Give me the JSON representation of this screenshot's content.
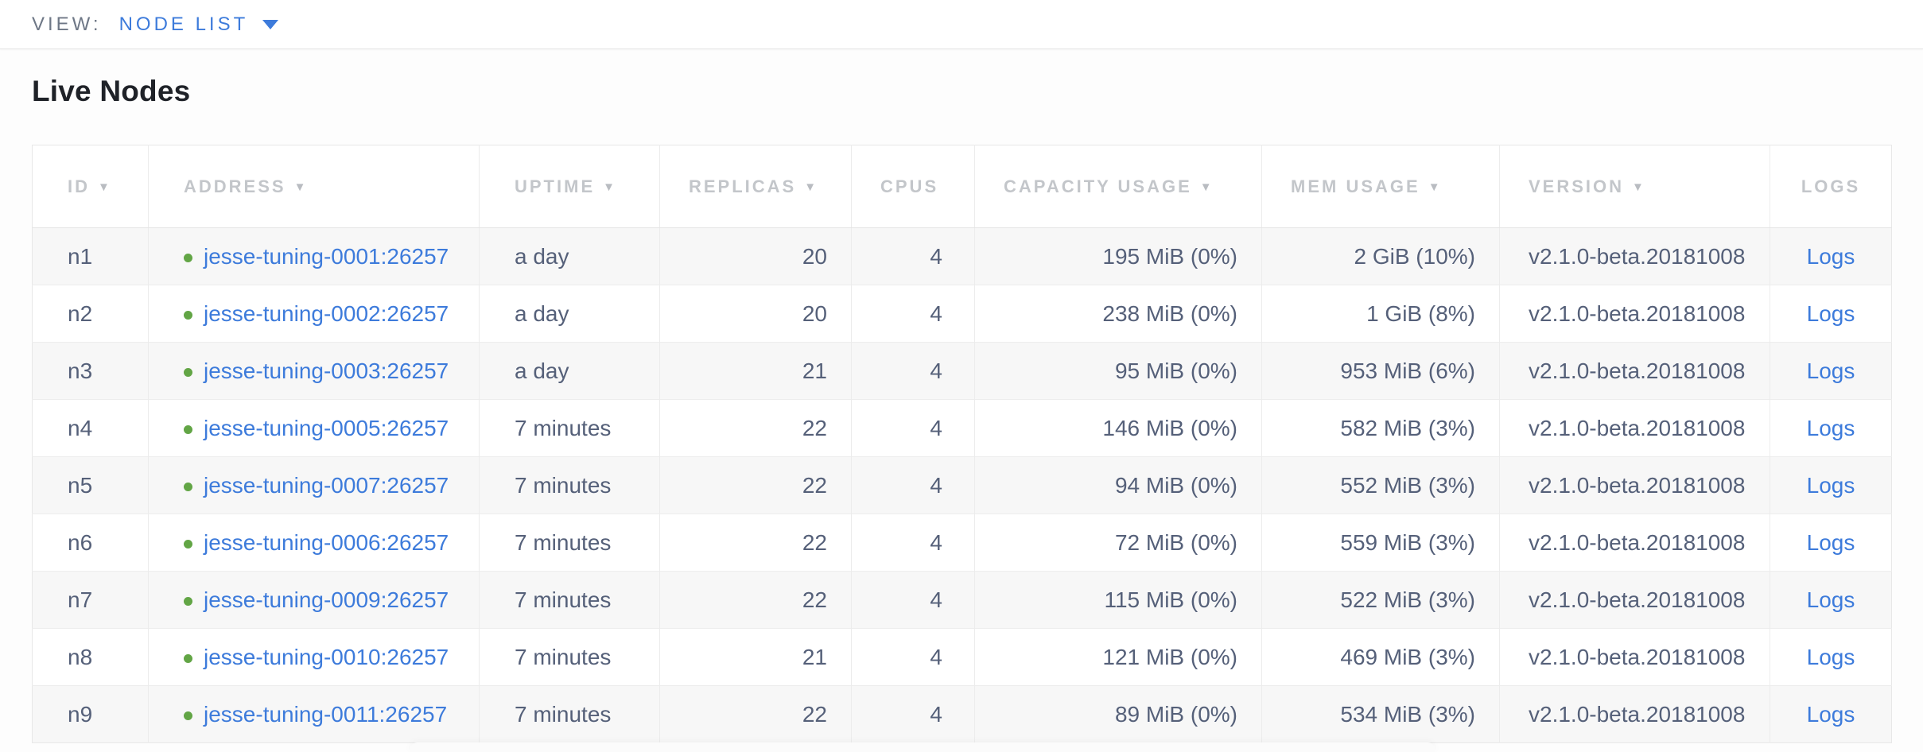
{
  "view_bar": {
    "label": "VIEW:",
    "selected": "NODE LIST"
  },
  "section": {
    "title": "Live Nodes"
  },
  "icons": {
    "sort_arrow": "▼",
    "dropdown_caret": "▼"
  },
  "colors": {
    "accent_blue": "#3d7bdb",
    "link_blue": "#3d7bdb",
    "healthy_green": "#62a545",
    "header_grey": "#c3c6ca",
    "cell_slate": "#556079",
    "row_alt_bg": "#f7f7f7"
  },
  "table": {
    "columns": [
      {
        "key": "id",
        "label": "ID",
        "sortable": true
      },
      {
        "key": "address",
        "label": "ADDRESS",
        "sortable": true
      },
      {
        "key": "uptime",
        "label": "UPTIME",
        "sortable": true
      },
      {
        "key": "replicas",
        "label": "REPLICAS",
        "sortable": true
      },
      {
        "key": "cpus",
        "label": "CPUS",
        "sortable": false
      },
      {
        "key": "capacity",
        "label": "CAPACITY USAGE",
        "sortable": true
      },
      {
        "key": "mem",
        "label": "MEM USAGE",
        "sortable": true
      },
      {
        "key": "version",
        "label": "VERSION",
        "sortable": true
      },
      {
        "key": "logs",
        "label": "LOGS",
        "sortable": false
      }
    ],
    "rows": [
      {
        "id": "n1",
        "address": "jesse-tuning-0001:26257",
        "status": "healthy",
        "uptime": "a day",
        "replicas": "20",
        "cpus": "4",
        "capacity": "195 MiB (0%)",
        "mem": "2 GiB (10%)",
        "version": "v2.1.0-beta.20181008",
        "logs": "Logs"
      },
      {
        "id": "n2",
        "address": "jesse-tuning-0002:26257",
        "status": "healthy",
        "uptime": "a day",
        "replicas": "20",
        "cpus": "4",
        "capacity": "238 MiB (0%)",
        "mem": "1 GiB (8%)",
        "version": "v2.1.0-beta.20181008",
        "logs": "Logs"
      },
      {
        "id": "n3",
        "address": "jesse-tuning-0003:26257",
        "status": "healthy",
        "uptime": "a day",
        "replicas": "21",
        "cpus": "4",
        "capacity": "95 MiB (0%)",
        "mem": "953 MiB (6%)",
        "version": "v2.1.0-beta.20181008",
        "logs": "Logs"
      },
      {
        "id": "n4",
        "address": "jesse-tuning-0005:26257",
        "status": "healthy",
        "uptime": "7 minutes",
        "replicas": "22",
        "cpus": "4",
        "capacity": "146 MiB (0%)",
        "mem": "582 MiB (3%)",
        "version": "v2.1.0-beta.20181008",
        "logs": "Logs"
      },
      {
        "id": "n5",
        "address": "jesse-tuning-0007:26257",
        "status": "healthy",
        "uptime": "7 minutes",
        "replicas": "22",
        "cpus": "4",
        "capacity": "94 MiB (0%)",
        "mem": "552 MiB (3%)",
        "version": "v2.1.0-beta.20181008",
        "logs": "Logs"
      },
      {
        "id": "n6",
        "address": "jesse-tuning-0006:26257",
        "status": "healthy",
        "uptime": "7 minutes",
        "replicas": "22",
        "cpus": "4",
        "capacity": "72 MiB (0%)",
        "mem": "559 MiB (3%)",
        "version": "v2.1.0-beta.20181008",
        "logs": "Logs"
      },
      {
        "id": "n7",
        "address": "jesse-tuning-0009:26257",
        "status": "healthy",
        "uptime": "7 minutes",
        "replicas": "22",
        "cpus": "4",
        "capacity": "115 MiB (0%)",
        "mem": "522 MiB (3%)",
        "version": "v2.1.0-beta.20181008",
        "logs": "Logs"
      },
      {
        "id": "n8",
        "address": "jesse-tuning-0010:26257",
        "status": "healthy",
        "uptime": "7 minutes",
        "replicas": "21",
        "cpus": "4",
        "capacity": "121 MiB (0%)",
        "mem": "469 MiB (3%)",
        "version": "v2.1.0-beta.20181008",
        "logs": "Logs"
      },
      {
        "id": "n9",
        "address": "jesse-tuning-0011:26257",
        "status": "healthy",
        "uptime": "7 minutes",
        "replicas": "22",
        "cpus": "4",
        "capacity": "89 MiB (0%)",
        "mem": "534 MiB (3%)",
        "version": "v2.1.0-beta.20181008",
        "logs": "Logs"
      }
    ]
  }
}
